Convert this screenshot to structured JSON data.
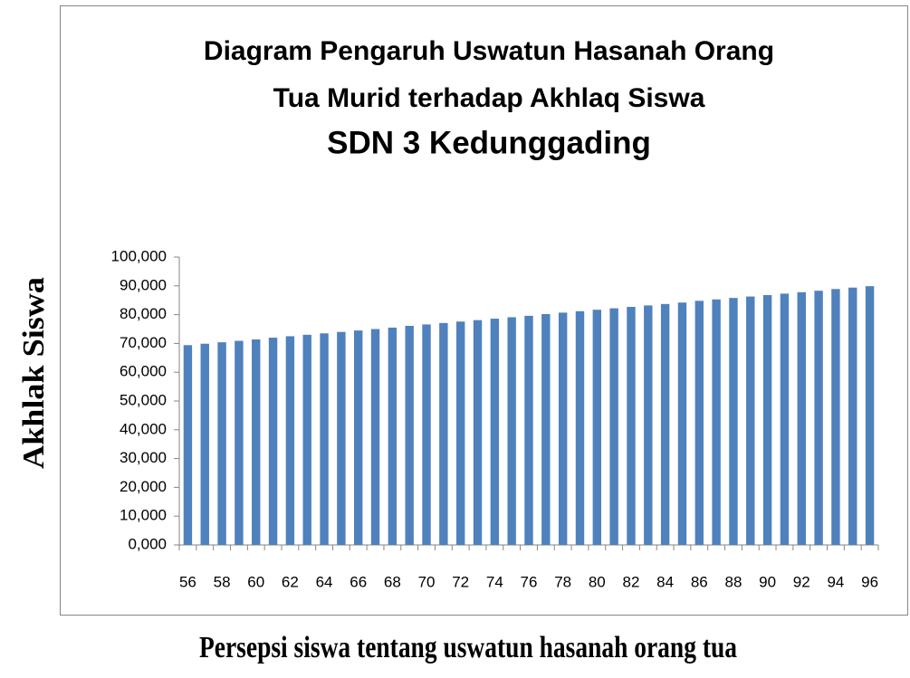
{
  "chart_data": {
    "type": "bar",
    "title": [
      "Diagram Pengaruh Uswatun Hasanah Orang",
      "Tua Murid terhadap Akhlaq Siswa",
      "SDN 3 Kedunggading"
    ],
    "y_label": "Akhlak Siswa",
    "x_label": "Persepsi siswa tentang uswatun hasanah orang tua",
    "categories": [
      "56",
      null,
      "58",
      null,
      "60",
      null,
      "62",
      null,
      "64",
      null,
      "66",
      null,
      "68",
      null,
      "70",
      null,
      "72",
      null,
      "74",
      null,
      "76",
      null,
      "78",
      null,
      "80",
      null,
      "82",
      null,
      "84",
      null,
      "86",
      null,
      "88",
      null,
      "90",
      null,
      "92",
      null,
      "94",
      null,
      "96"
    ],
    "values": [
      69.4,
      69.9,
      70.4,
      70.9,
      71.4,
      72.0,
      72.5,
      73.0,
      73.5,
      74.0,
      74.5,
      75.0,
      75.5,
      76.1,
      76.6,
      77.1,
      77.6,
      78.1,
      78.6,
      79.1,
      79.6,
      80.2,
      80.7,
      81.2,
      81.7,
      82.2,
      82.7,
      83.2,
      83.7,
      84.2,
      84.8,
      85.3,
      85.8,
      86.3,
      86.8,
      87.3,
      87.8,
      88.3,
      88.9,
      89.4,
      89.9
    ],
    "color": "#4f81bd",
    "ylim": [
      0,
      100
    ],
    "yticks": [
      {
        "value": 0,
        "label": "0,000"
      },
      {
        "value": 10,
        "label": "10,000"
      },
      {
        "value": 20,
        "label": "20,000"
      },
      {
        "value": 30,
        "label": "30,000"
      },
      {
        "value": 40,
        "label": "40,000"
      },
      {
        "value": 50,
        "label": "50,000"
      },
      {
        "value": 60,
        "label": "60,000"
      },
      {
        "value": 70,
        "label": "70,000"
      },
      {
        "value": 80,
        "label": "80,000"
      },
      {
        "value": 90,
        "label": "90,000"
      },
      {
        "value": 100,
        "label": "100,000"
      }
    ],
    "grid": false
  }
}
